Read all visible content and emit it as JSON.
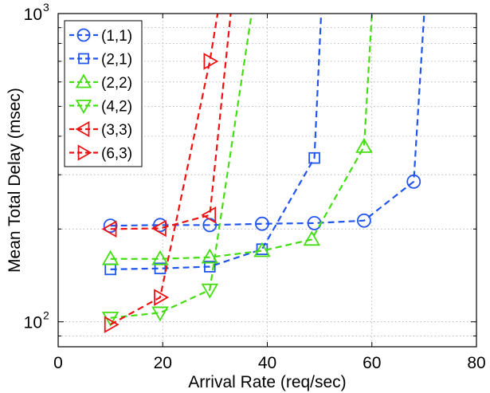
{
  "chart_data": {
    "type": "line",
    "title": "",
    "xlabel": "Arrival Rate (req/sec)",
    "ylabel": "Mean Total Delay (msec)",
    "xlim": [
      0,
      80
    ],
    "ylim": [
      83,
      1000
    ],
    "yscale": "log",
    "grid": true,
    "legend_position": "top-left",
    "x_ticks": [
      {
        "value": 0,
        "label": "0"
      },
      {
        "value": 20,
        "label": "20"
      },
      {
        "value": 40,
        "label": "40"
      },
      {
        "value": 60,
        "label": "60"
      },
      {
        "value": 80,
        "label": "80"
      }
    ],
    "y_ticks": [
      {
        "value": 100,
        "base": "10",
        "exp": "2"
      },
      {
        "value": 1000,
        "base": "10",
        "exp": "3"
      }
    ],
    "series": [
      {
        "name": "(1,1)",
        "color": "#2255ee",
        "marker": "circle",
        "x": [
          10,
          19.5,
          29,
          39,
          49,
          58.5,
          68,
          70
        ],
        "y": [
          205,
          206,
          206,
          208,
          209,
          213,
          285,
          1000
        ]
      },
      {
        "name": "(2,1)",
        "color": "#2255ee",
        "marker": "square",
        "x": [
          10,
          19.5,
          29,
          39,
          49,
          50.3
        ],
        "y": [
          148,
          149,
          151,
          172,
          340,
          1000
        ]
      },
      {
        "name": "(2,2)",
        "color": "#44dd11",
        "marker": "triangle-up",
        "x": [
          10,
          19.5,
          29,
          39,
          48.5,
          58.5,
          60
        ],
        "y": [
          160,
          160,
          162,
          170,
          185,
          370,
          1000
        ]
      },
      {
        "name": "(4,2)",
        "color": "#44dd11",
        "marker": "triangle-down",
        "x": [
          10,
          19.5,
          29,
          37
        ],
        "y": [
          103,
          107,
          127,
          1000
        ]
      },
      {
        "name": "(3,3)",
        "color": "#ee1111",
        "marker": "triangle-left",
        "x": [
          10,
          19.5,
          29,
          33
        ],
        "y": [
          200,
          201,
          222,
          1000
        ]
      },
      {
        "name": "(6,3)",
        "color": "#ee1111",
        "marker": "triangle-right",
        "x": [
          10,
          19.5,
          29,
          30.5
        ],
        "y": [
          98,
          120,
          700,
          1000
        ]
      }
    ]
  }
}
